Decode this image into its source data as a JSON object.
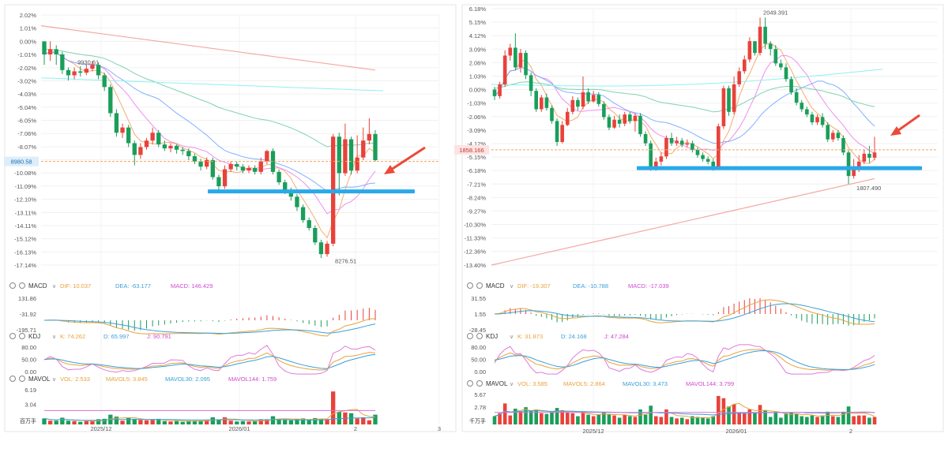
{
  "charts": [
    {
      "id": "left",
      "price_ticks": [
        "2.02%",
        "1.01%",
        "0.00%",
        "-1.01%",
        "-2.02%",
        "-3.02%",
        "-4.03%",
        "-5.04%",
        "-6.05%",
        "-7.06%",
        "-8.07%",
        "-9.07%",
        "-10.08%",
        "-11.09%",
        "-12.10%",
        "-13.11%",
        "-14.11%",
        "-15.12%",
        "-16.13%",
        "-17.14%"
      ],
      "high_label": "9930.61",
      "low_label": "8276.51",
      "current_price": "8980.58",
      "x_labels": [
        "2025/12",
        "2026/01",
        "2",
        "3"
      ],
      "macd": {
        "title": "MACD",
        "dif": "DIF: 10.037",
        "dea": "DEA: -63.177",
        "macd": "MACD: 146.429",
        "ticks": [
          "131.86",
          "-31.92",
          "-195.71"
        ]
      },
      "kdj": {
        "title": "KDJ",
        "k": "K: 74.262",
        "d": "D: 65.997",
        "j": "J: 90.791",
        "ticks": [
          "80.00",
          "50.00",
          "0.00"
        ]
      },
      "mavol": {
        "title": "MAVOL",
        "vol": "VOL: 2.533",
        "ma5": "MAVOL5: 3.845",
        "ma30": "MAVOL30: 2.095",
        "ma144": "MAVOL144: 1.759",
        "ticks": [
          "6.19",
          "3.04"
        ],
        "unit": "百万手"
      }
    },
    {
      "id": "right",
      "price_ticks": [
        "6.18%",
        "5.15%",
        "4.12%",
        "3.09%",
        "2.06%",
        "1.03%",
        "0.00%",
        "-1.03%",
        "-2.06%",
        "-3.09%",
        "-4.12%",
        "-5.15%",
        "-6.18%",
        "-7.21%",
        "-8.24%",
        "-9.27%",
        "-10.30%",
        "-11.33%",
        "-12.36%",
        "-13.40%"
      ],
      "high_label": "2049.391",
      "low_label": "1807.490",
      "current_price": "1858.166",
      "x_labels": [
        "2025/12",
        "2026/01",
        "2"
      ],
      "macd": {
        "title": "MACD",
        "dif": "DIF: -19.307",
        "dea": "DEA: -10.788",
        "macd": "MACD: -17.039",
        "ticks": [
          "31.55",
          "1.55",
          "-28.45"
        ]
      },
      "kdj": {
        "title": "KDJ",
        "k": "K: 31.873",
        "d": "D: 24.168",
        "j": "J: 47.284",
        "ticks": [
          "80.00",
          "50.00",
          "0.00"
        ]
      },
      "mavol": {
        "title": "MAVOL",
        "vol": "VOL: 3.585",
        "ma5": "MAVOL5: 2.864",
        "ma30": "MAVOL30: 3.473",
        "ma144": "MAVOL144: 3.799",
        "ticks": [
          "5.67",
          "2.78"
        ],
        "unit": "千万手"
      }
    }
  ],
  "chart_data": [
    {
      "type": "candlestick",
      "title": "",
      "y_unit": "% change",
      "ylim": [
        -17.14,
        2.02
      ],
      "high": 9930.61,
      "low": 8276.51,
      "last_price": 8980.58,
      "candles": [
        [
          0,
          -1,
          -0.1,
          -1.8
        ],
        [
          -1,
          -0.6,
          0,
          -1.5
        ],
        [
          -0.6,
          -1,
          -0.3,
          -1.8
        ],
        [
          -1,
          -2.2,
          -0.8,
          -2.5
        ],
        [
          -2.2,
          -2.6,
          -2,
          -3
        ],
        [
          -2.6,
          -2.3,
          -2,
          -2.9
        ],
        [
          -2.3,
          -2.4,
          -1.9,
          -2.7
        ],
        [
          -2.4,
          -2.1,
          -1.8,
          -2.6
        ],
        [
          -2.1,
          -1.8,
          -1.5,
          -2.3
        ],
        [
          -1.8,
          -2.6,
          -1.6,
          -2.9
        ],
        [
          -2.6,
          -3.5,
          -2.4,
          -3.8
        ],
        [
          -3.5,
          -5.5,
          -3.3,
          -5.8
        ],
        [
          -5.5,
          -7,
          -5.2,
          -7.3
        ],
        [
          -7,
          -6.6,
          -6.3,
          -7.4
        ],
        [
          -6.6,
          -7.8,
          -6.4,
          -8.1
        ],
        [
          -7.8,
          -8.7,
          -7.6,
          -9.5
        ],
        [
          -8.7,
          -8.1,
          -7.8,
          -9
        ],
        [
          -8.1,
          -7.6,
          -7.4,
          -8.3
        ],
        [
          -7.6,
          -7,
          -6.6,
          -7.9
        ],
        [
          -7,
          -7.9,
          -6.8,
          -8.1
        ],
        [
          -7.9,
          -8.2,
          -7.6,
          -8.4
        ],
        [
          -8.2,
          -8,
          -7.8,
          -8.5
        ],
        [
          -8,
          -8.3,
          -7.9,
          -8.6
        ],
        [
          -8.3,
          -8.4,
          -8.1,
          -8.7
        ],
        [
          -8.4,
          -8.8,
          -8.2,
          -9.1
        ],
        [
          -8.8,
          -9.2,
          -8.6,
          -9.4
        ],
        [
          -9.2,
          -9.6,
          -9,
          -9.9
        ],
        [
          -9.6,
          -9.1,
          -8.9,
          -9.8
        ],
        [
          -9.1,
          -10.4,
          -8.9,
          -10.6
        ],
        [
          -10.4,
          -11.1,
          -10.2,
          -11.4
        ],
        [
          -11.1,
          -9.8,
          -9.5,
          -11.3
        ],
        [
          -9.8,
          -9.4,
          -9.2,
          -10
        ],
        [
          -9.4,
          -9.6,
          -9.2,
          -9.9
        ],
        [
          -9.6,
          -9.9,
          -9.4,
          -10.1
        ],
        [
          -9.9,
          -9.7,
          -9.5,
          -10.1
        ],
        [
          -9.7,
          -10,
          -9.5,
          -10.2
        ],
        [
          -10,
          -9.2,
          -8.9,
          -10.2
        ],
        [
          -9.2,
          -8.4,
          -8.3,
          -9.4
        ],
        [
          -8.4,
          -10,
          -8.2,
          -10.2
        ],
        [
          -10,
          -10.8,
          -9.8,
          -11
        ],
        [
          -10.8,
          -11.4,
          -10.6,
          -11.7
        ],
        [
          -11.4,
          -11.9,
          -11.2,
          -12.2
        ],
        [
          -11.9,
          -12.7,
          -11.7,
          -13
        ],
        [
          -12.7,
          -13.7,
          -12.5,
          -13.9
        ],
        [
          -13.7,
          -14.3,
          -13.5,
          -14.5
        ],
        [
          -14.3,
          -15.4,
          -14.1,
          -15.6
        ],
        [
          -15.4,
          -16.3,
          -15.2,
          -16.6
        ],
        [
          -16.3,
          -15.5,
          -15.3,
          -16.5
        ],
        [
          -15.5,
          -7.3,
          -7.1,
          -15.7
        ],
        [
          -7.3,
          -10.1,
          -7,
          -11.8
        ],
        [
          -10.1,
          -7.5,
          -6.3,
          -10.3
        ],
        [
          -7.5,
          -9.9,
          -7.3,
          -10.2
        ],
        [
          -9.9,
          -8.9,
          -7.2,
          -10.1
        ],
        [
          -8.9,
          -7.6,
          -6.6,
          -9.1
        ],
        [
          -7.6,
          -7.1,
          -5.9,
          -7.9
        ],
        [
          -7.1,
          -9.1,
          -6.8,
          -9.2
        ]
      ],
      "annotations": [
        "support line near -11.5%",
        "arrow pointing to latest candle"
      ]
    },
    {
      "type": "candlestick",
      "title": "",
      "y_unit": "% change",
      "ylim": [
        -13.4,
        6.18
      ],
      "high": 2049.391,
      "low": 1807.49,
      "last_price": 1858.166,
      "candles": [
        [
          0,
          -0.5,
          0.2,
          -0.8
        ],
        [
          -0.5,
          0.4,
          0.6,
          -0.7
        ],
        [
          0.4,
          2.6,
          3,
          0.2
        ],
        [
          2.6,
          3.2,
          3.5,
          2.2
        ],
        [
          3.2,
          1.7,
          4.3,
          1.5
        ],
        [
          1.7,
          2.8,
          3.1,
          1.3
        ],
        [
          2.8,
          1.1,
          3,
          0.8
        ],
        [
          1.1,
          -0.1,
          1.3,
          -0.5
        ],
        [
          -0.1,
          -1.5,
          0.1,
          -1.7
        ],
        [
          -1.5,
          -0.6,
          -0.4,
          -1.7
        ],
        [
          -0.6,
          -1.4,
          -0.3,
          -1.6
        ],
        [
          -1.4,
          -2.4,
          -1.2,
          -2.6
        ],
        [
          -2.4,
          -4,
          -2.2,
          -4.3
        ],
        [
          -4,
          -2.7,
          -2.4,
          -4.1
        ],
        [
          -2.7,
          -1.7,
          -1.4,
          -2.8
        ],
        [
          -1.7,
          -0.8,
          -0.5,
          -1.9
        ],
        [
          -0.8,
          -1.3,
          -0.6,
          -1.6
        ],
        [
          -1.3,
          -0.2,
          1,
          -1.5
        ],
        [
          -0.2,
          -0.9,
          0.1,
          -1.1
        ],
        [
          -0.9,
          -0.4,
          -0.1,
          -1
        ],
        [
          -0.4,
          -1.1,
          -0.2,
          -1.3
        ],
        [
          -1.1,
          -2.1,
          -0.9,
          -2.3
        ],
        [
          -2.1,
          -2.9,
          -1.9,
          -3.1
        ],
        [
          -2.9,
          -2.3,
          -2,
          -3
        ],
        [
          -2.3,
          -2.6,
          -1.9,
          -2.9
        ],
        [
          -2.6,
          -1.9,
          -1.7,
          -2.8
        ],
        [
          -1.9,
          -2.4,
          -1.7,
          -2.6
        ],
        [
          -2.4,
          -2,
          -1.8,
          -3.2
        ],
        [
          -2,
          -3.4,
          -1.8,
          -3.6
        ],
        [
          -3.4,
          -4.1,
          -3.2,
          -4.3
        ],
        [
          -4.1,
          -6,
          -3.9,
          -6.2
        ],
        [
          -6,
          -5.5,
          -5.2,
          -6.2
        ],
        [
          -5.5,
          -5.1,
          -4.8,
          -5.8
        ],
        [
          -5.1,
          -3.7,
          -3.5,
          -5.3
        ],
        [
          -3.7,
          -4.1,
          -3.3,
          -4.3
        ],
        [
          -4.1,
          -3.9,
          -3.6,
          -4.3
        ],
        [
          -3.9,
          -4.2,
          -3.7,
          -4.4
        ],
        [
          -4.2,
          -4.1,
          -3.8,
          -4.4
        ],
        [
          -4.1,
          -4.6,
          -3.9,
          -4.8
        ],
        [
          -4.6,
          -5,
          -4.4,
          -5.2
        ],
        [
          -5,
          -5.3,
          -4.8,
          -5.5
        ],
        [
          -5.3,
          -5.5,
          -5.1,
          -5.7
        ],
        [
          -5.5,
          -6,
          -5.3,
          -6.2
        ],
        [
          -6,
          -2.8,
          -2.6,
          -6.1
        ],
        [
          -2.8,
          0.1,
          0.3,
          -3
        ],
        [
          0.1,
          -1.7,
          0.3,
          -2
        ],
        [
          -1.7,
          0.4,
          1,
          -1.9
        ],
        [
          0.4,
          1.4,
          1.7,
          0.2
        ],
        [
          1.4,
          2.3,
          2.6,
          1.2
        ],
        [
          2.3,
          3.7,
          4,
          2.1
        ],
        [
          3.7,
          2.8,
          3.2,
          2.6
        ],
        [
          2.8,
          4.8,
          5.5,
          2.6
        ],
        [
          4.8,
          3.5,
          5.5,
          3.1
        ],
        [
          3.5,
          3.1,
          3.7,
          2.6
        ],
        [
          3.1,
          2,
          3.4,
          1.8
        ],
        [
          2,
          1.7,
          2.3,
          1.5
        ],
        [
          1.7,
          0.8,
          2,
          0.6
        ],
        [
          0.8,
          -0.2,
          1,
          -0.4
        ],
        [
          -0.2,
          -1,
          0.1,
          -1.2
        ],
        [
          -1,
          -1.5,
          -0.8,
          -1.7
        ],
        [
          -1.5,
          -1.9,
          -1.3,
          -2.1
        ],
        [
          -1.9,
          -2.5,
          -1.7,
          -2.7
        ],
        [
          -2.5,
          -2.1,
          -1.9,
          -2.7
        ],
        [
          -2.1,
          -2.7,
          -1.8,
          -2.9
        ],
        [
          -2.7,
          -3.8,
          -2.5,
          -4
        ],
        [
          -3.8,
          -3.3,
          -3.1,
          -4
        ],
        [
          -3.3,
          -3.7,
          -3.1,
          -3.9
        ],
        [
          -3.7,
          -4.8,
          -3.5,
          -5
        ],
        [
          -4.8,
          -6.6,
          -4.6,
          -7.2
        ],
        [
          -6.6,
          -6.1,
          -5.3,
          -6.8
        ],
        [
          -6.1,
          -5.5,
          -5,
          -6.3
        ],
        [
          -5.5,
          -4.9,
          -4.6,
          -5.7
        ],
        [
          -4.9,
          -5.2,
          -4.3,
          -5.6
        ],
        [
          -5.2,
          -4.8,
          -3.6,
          -5.4
        ]
      ],
      "annotations": [
        "support line near -6.1%",
        "arrow pointing to latest candle"
      ]
    }
  ]
}
